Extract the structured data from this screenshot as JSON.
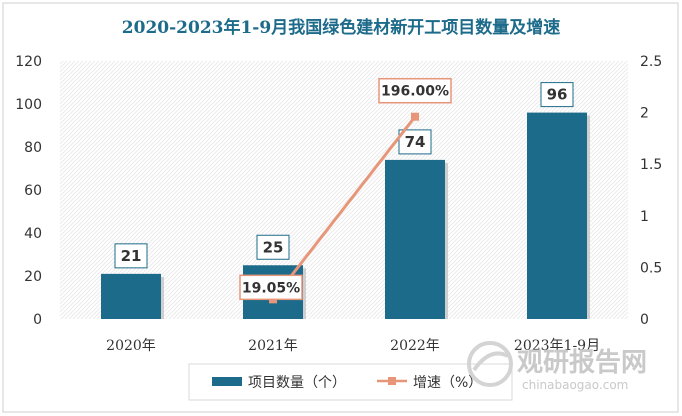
{
  "chart_data": {
    "type": "bar",
    "title": "2020-2023年1-9月我国绿色建材新开工项目数量及增速",
    "categories": [
      "2020年",
      "2021年",
      "2022年",
      "2023年1-9月"
    ],
    "series": [
      {
        "name": "项目数量（个）",
        "type": "bar",
        "axis": "left",
        "color": "#1d6b8a",
        "values": [
          21,
          25,
          74,
          96
        ],
        "labels": [
          "21",
          "25",
          "74",
          "96"
        ]
      },
      {
        "name": "增速（%）",
        "type": "line",
        "axis": "right",
        "color": "#e8967a",
        "points": [
          {
            "category": "2021年",
            "value": 0.1905,
            "label": "19.05%"
          },
          {
            "category": "2022年",
            "value": 1.96,
            "label": "196.00%"
          }
        ]
      }
    ],
    "y_left": {
      "min": 0,
      "max": 120,
      "ticks": [
        "0",
        "20",
        "40",
        "60",
        "80",
        "100",
        "120"
      ]
    },
    "y_right": {
      "min": 0,
      "max": 2.5,
      "ticks": [
        "0",
        "0.5",
        "1",
        "1.5",
        "2",
        "2.5"
      ]
    },
    "legend_position": "bottom"
  },
  "watermark": {
    "name": "观研报告网",
    "url": "chinabaogao.com"
  }
}
